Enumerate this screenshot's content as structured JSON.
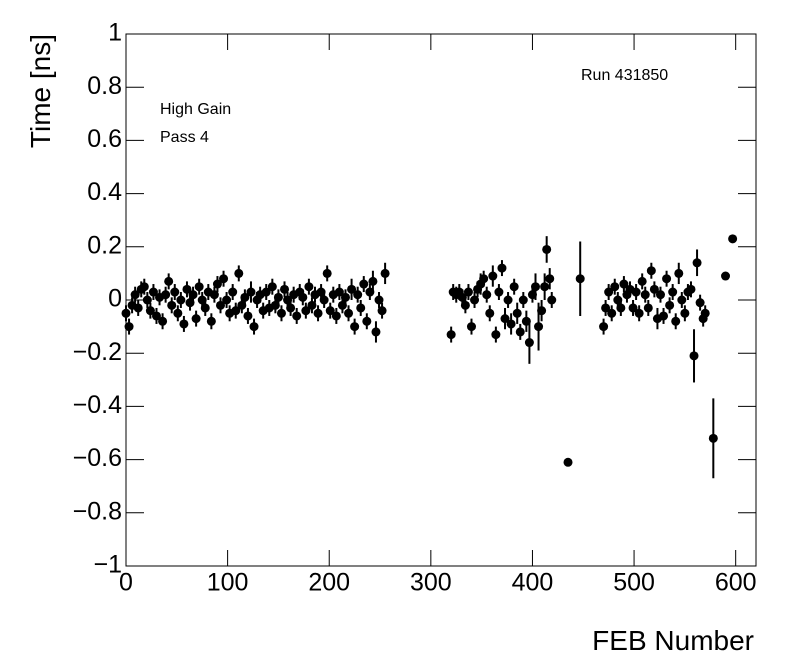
{
  "chart_data": {
    "type": "scatter",
    "x_label": "FEB Number",
    "y_label": "Time [ns]",
    "annotations": [
      "Run 431850",
      "High Gain",
      "Pass 4"
    ],
    "xlim": [
      0,
      620
    ],
    "xticks": [
      0,
      100,
      200,
      300,
      400,
      500,
      600
    ],
    "ylim": [
      -1,
      1
    ],
    "yticks": [
      {
        "value": -1,
        "label": "−1"
      },
      {
        "value": -0.8,
        "label": "−0.8"
      },
      {
        "value": -0.6,
        "label": "−0.6"
      },
      {
        "value": -0.4,
        "label": "−0.4"
      },
      {
        "value": -0.2,
        "label": "−0.2"
      },
      0,
      0.2,
      0.4,
      0.6,
      0.8,
      1
    ],
    "color": "#000000",
    "x": [
      0,
      3,
      6,
      9,
      12,
      15,
      18,
      21,
      24,
      27,
      30,
      33,
      36,
      39,
      42,
      45,
      48,
      51,
      54,
      57,
      60,
      63,
      66,
      69,
      72,
      75,
      78,
      81,
      84,
      87,
      90,
      93,
      96,
      99,
      102,
      105,
      108,
      111,
      114,
      117,
      120,
      123,
      126,
      129,
      132,
      135,
      138,
      141,
      144,
      147,
      150,
      153,
      156,
      159,
      162,
      165,
      168,
      171,
      174,
      177,
      180,
      183,
      186,
      189,
      192,
      195,
      198,
      201,
      204,
      207,
      210,
      213,
      216,
      219,
      222,
      225,
      228,
      231,
      234,
      237,
      240,
      243,
      246,
      249,
      252,
      255,
      320,
      322,
      325,
      328,
      331,
      334,
      337,
      340,
      343,
      346,
      349,
      352,
      355,
      358,
      361,
      364,
      367,
      370,
      373,
      376,
      379,
      382,
      385,
      388,
      391,
      394,
      397,
      400,
      403,
      406,
      409,
      412,
      414,
      417,
      419,
      435,
      447,
      470,
      472,
      475,
      478,
      481,
      484,
      487,
      490,
      493,
      496,
      499,
      502,
      505,
      508,
      511,
      514,
      517,
      520,
      523,
      526,
      529,
      532,
      535,
      538,
      541,
      544,
      547,
      550,
      553,
      556,
      559,
      562,
      565,
      568,
      570,
      578,
      590,
      597
    ],
    "values": [
      -0.05,
      -0.1,
      -0.02,
      0.02,
      -0.03,
      0.04,
      0.05,
      0.0,
      -0.04,
      0.03,
      -0.06,
      0.01,
      -0.08,
      0.02,
      0.07,
      -0.02,
      0.03,
      -0.05,
      0.0,
      -0.09,
      0.04,
      -0.01,
      0.02,
      -0.07,
      0.05,
      0.0,
      -0.03,
      0.03,
      -0.08,
      0.02,
      0.06,
      -0.02,
      0.08,
      0.0,
      -0.05,
      0.03,
      -0.04,
      0.1,
      -0.02,
      0.01,
      -0.06,
      0.03,
      -0.1,
      0.0,
      0.02,
      -0.04,
      0.03,
      -0.03,
      0.05,
      -0.02,
      0.01,
      -0.05,
      0.04,
      0.0,
      -0.03,
      0.02,
      -0.06,
      0.03,
      0.01,
      -0.04,
      0.05,
      -0.02,
      0.02,
      -0.05,
      0.03,
      0.0,
      0.1,
      -0.04,
      0.02,
      -0.06,
      0.03,
      -0.02,
      0.01,
      -0.05,
      0.04,
      -0.1,
      0.02,
      -0.03,
      0.06,
      -0.08,
      0.03,
      0.07,
      -0.12,
      0.0,
      -0.04,
      0.1,
      -0.13,
      0.03,
      0.02,
      0.03,
      0.01,
      -0.02,
      0.03,
      -0.1,
      0.0,
      0.04,
      0.06,
      0.08,
      0.02,
      -0.05,
      0.09,
      -0.13,
      0.03,
      0.12,
      -0.07,
      0.0,
      -0.09,
      0.05,
      -0.05,
      -0.12,
      0.0,
      -0.08,
      -0.16,
      0.02,
      0.05,
      -0.1,
      -0.04,
      0.05,
      0.19,
      0.08,
      0.0,
      -0.61,
      0.08,
      -0.1,
      -0.03,
      0.03,
      -0.05,
      0.05,
      0.0,
      -0.03,
      0.06,
      0.02,
      0.04,
      -0.03,
      0.03,
      -0.05,
      0.07,
      0.02,
      -0.03,
      0.11,
      0.04,
      -0.07,
      0.02,
      -0.06,
      0.08,
      -0.02,
      0.03,
      -0.08,
      0.1,
      0.0,
      -0.05,
      0.03,
      0.04,
      -0.21,
      0.14,
      -0.01,
      -0.07,
      -0.05,
      -0.52,
      0.09,
      0.23
    ],
    "errors": [
      0.03,
      0.03,
      0.03,
      0.03,
      0.03,
      0.03,
      0.03,
      0.03,
      0.03,
      0.03,
      0.03,
      0.03,
      0.03,
      0.03,
      0.03,
      0.03,
      0.03,
      0.03,
      0.03,
      0.03,
      0.03,
      0.03,
      0.03,
      0.03,
      0.03,
      0.03,
      0.03,
      0.03,
      0.03,
      0.03,
      0.03,
      0.03,
      0.03,
      0.03,
      0.03,
      0.03,
      0.03,
      0.03,
      0.03,
      0.03,
      0.03,
      0.04,
      0.03,
      0.03,
      0.03,
      0.03,
      0.03,
      0.03,
      0.03,
      0.03,
      0.03,
      0.03,
      0.03,
      0.03,
      0.03,
      0.03,
      0.03,
      0.03,
      0.03,
      0.03,
      0.03,
      0.03,
      0.03,
      0.03,
      0.03,
      0.03,
      0.03,
      0.03,
      0.03,
      0.03,
      0.03,
      0.03,
      0.03,
      0.03,
      0.04,
      0.03,
      0.03,
      0.03,
      0.03,
      0.03,
      0.03,
      0.04,
      0.04,
      0.03,
      0.03,
      0.04,
      0.03,
      0.03,
      0.03,
      0.03,
      0.03,
      0.03,
      0.03,
      0.03,
      0.03,
      0.03,
      0.04,
      0.03,
      0.03,
      0.03,
      0.04,
      0.03,
      0.03,
      0.03,
      0.04,
      0.03,
      0.04,
      0.03,
      0.04,
      0.03,
      0.03,
      0.04,
      0.08,
      0.03,
      0.05,
      0.09,
      0.04,
      0.05,
      0.05,
      0.04,
      0.03,
      0.01,
      0.14,
      0.03,
      0.03,
      0.03,
      0.03,
      0.03,
      0.03,
      0.03,
      0.03,
      0.03,
      0.03,
      0.03,
      0.03,
      0.03,
      0.03,
      0.03,
      0.03,
      0.03,
      0.03,
      0.04,
      0.03,
      0.03,
      0.03,
      0.03,
      0.03,
      0.03,
      0.04,
      0.03,
      0.03,
      0.03,
      0.03,
      0.1,
      0.05,
      0.03,
      0.03,
      0.03,
      0.15,
      0.01,
      0.01
    ]
  }
}
